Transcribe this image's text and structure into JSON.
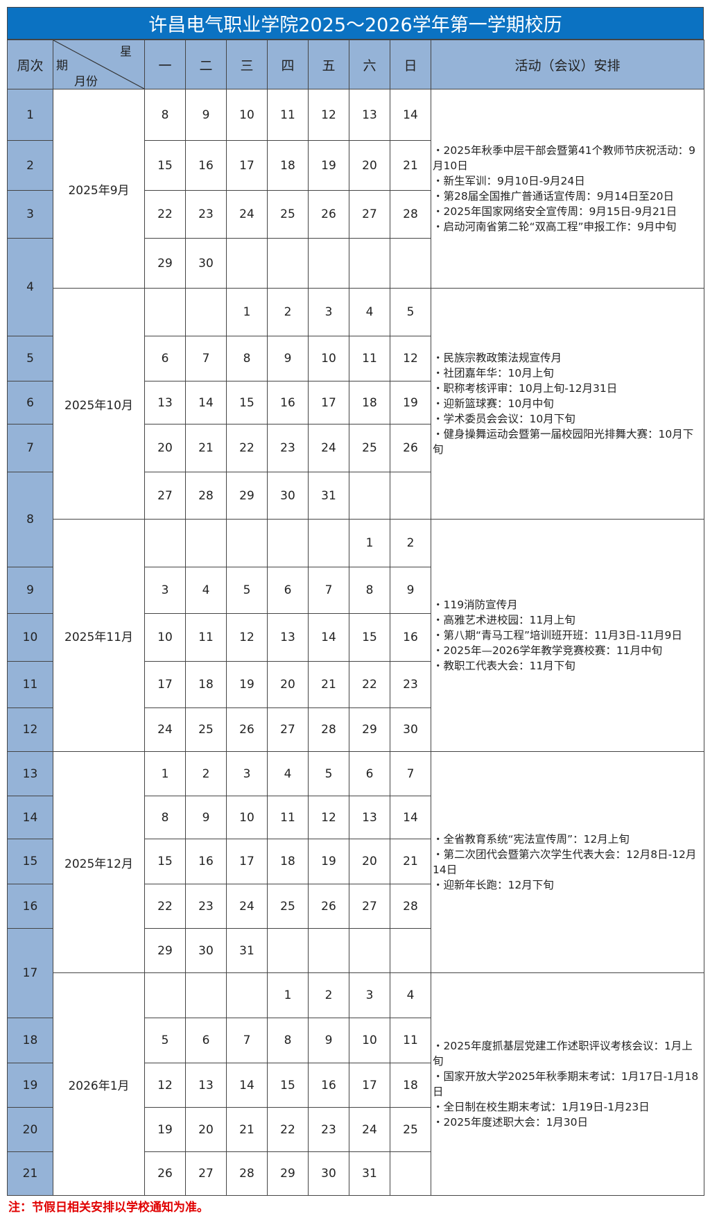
{
  "title": "许昌电气职业学院2025～2026学年第一学期校历",
  "header": {
    "week_label": "周次",
    "diag_top": "星",
    "diag_mid": "期",
    "diag_bottom": "月份",
    "weekdays": [
      "一",
      "二",
      "三",
      "四",
      "五",
      "六",
      "日"
    ],
    "activities_label": "活动（会议）安排"
  },
  "weeks": [
    "1",
    "2",
    "3",
    "4",
    "5",
    "6",
    "7",
    "8",
    "9",
    "10",
    "11",
    "12",
    "13",
    "14",
    "15",
    "16",
    "17",
    "18",
    "19",
    "20",
    "21"
  ],
  "months": [
    {
      "label": "2025年9月",
      "rows": [
        [
          "8",
          "9",
          "10",
          "11",
          "12",
          "13",
          "14"
        ],
        [
          "15",
          "16",
          "17",
          "18",
          "19",
          "20",
          "21"
        ],
        [
          "22",
          "23",
          "24",
          "25",
          "26",
          "27",
          "28"
        ],
        [
          "29",
          "30",
          "",
          "",
          "",
          "",
          ""
        ]
      ],
      "activities": [
        "・2025年秋季中层干部会暨第41个教师节庆祝活动：9月10日",
        "・新生军训：9月10日-9月24日",
        "・第28届全国推广普通话宣传周：9月14日至20日",
        "・2025年国家网络安全宣传周：9月15日-9月21日",
        "・启动河南省第二轮“双高工程”申报工作：9月中旬"
      ]
    },
    {
      "label": "2025年10月",
      "rows": [
        [
          "",
          "",
          "1",
          "2",
          "3",
          "4",
          "5"
        ],
        [
          "6",
          "7",
          "8",
          "9",
          "10",
          "11",
          "12"
        ],
        [
          "13",
          "14",
          "15",
          "16",
          "17",
          "18",
          "19"
        ],
        [
          "20",
          "21",
          "22",
          "23",
          "24",
          "25",
          "26"
        ],
        [
          "27",
          "28",
          "29",
          "30",
          "31",
          "",
          ""
        ]
      ],
      "activities": [
        "・民族宗教政策法规宣传月",
        "・社团嘉年华：10月上旬",
        "・职称考核评审：10月上旬-12月31日",
        "・迎新篮球赛：10月中旬",
        "・学术委员会会议：10月下旬",
        "・健身操舞运动会暨第一届校园阳光排舞大赛：10月下旬"
      ]
    },
    {
      "label": "2025年11月",
      "rows": [
        [
          "",
          "",
          "",
          "",
          "",
          "1",
          "2"
        ],
        [
          "3",
          "4",
          "5",
          "6",
          "7",
          "8",
          "9"
        ],
        [
          "10",
          "11",
          "12",
          "13",
          "14",
          "15",
          "16"
        ],
        [
          "17",
          "18",
          "19",
          "20",
          "21",
          "22",
          "23"
        ],
        [
          "24",
          "25",
          "26",
          "27",
          "28",
          "29",
          "30"
        ]
      ],
      "activities": [
        "・119消防宣传月",
        "・高雅艺术进校园：11月上旬",
        "・第八期“青马工程”培训班开班：11月3日-11月9日",
        "・2025年—2026学年教学竞赛校赛：11月中旬",
        "・教职工代表大会：11月下旬"
      ]
    },
    {
      "label": "2025年12月",
      "rows": [
        [
          "1",
          "2",
          "3",
          "4",
          "5",
          "6",
          "7"
        ],
        [
          "8",
          "9",
          "10",
          "11",
          "12",
          "13",
          "14"
        ],
        [
          "15",
          "16",
          "17",
          "18",
          "19",
          "20",
          "21"
        ],
        [
          "22",
          "23",
          "24",
          "25",
          "26",
          "27",
          "28"
        ],
        [
          "29",
          "30",
          "31",
          "",
          "",
          "",
          ""
        ]
      ],
      "activities": [
        "・全省教育系统“宪法宣传周”：12月上旬",
        "・第二次团代会暨第六次学生代表大会：12月8日-12月14日",
        "・迎新年长跑：12月下旬"
      ]
    },
    {
      "label": "2026年1月",
      "rows": [
        [
          "",
          "",
          "",
          "1",
          "2",
          "3",
          "4"
        ],
        [
          "5",
          "6",
          "7",
          "8",
          "9",
          "10",
          "11"
        ],
        [
          "12",
          "13",
          "14",
          "15",
          "16",
          "17",
          "18"
        ],
        [
          "19",
          "20",
          "21",
          "22",
          "23",
          "24",
          "25"
        ],
        [
          "26",
          "27",
          "28",
          "29",
          "30",
          "31",
          ""
        ]
      ],
      "activities": [
        "・2025年度抓基层党建工作述职评议考核会议：1月上旬",
        "・国家开放大学2025年秋季期末考试：1月17日-1月18日",
        "・全日制在校生期末考试：1月19日-1月23日",
        "・2025年度述职大会：1月30日"
      ]
    }
  ],
  "note": "注：节假日相关安排以学校通知为准。",
  "colors": {
    "title_bg": "#0b72c2",
    "header_bg": "#95b3d7",
    "note": "#e00000"
  }
}
